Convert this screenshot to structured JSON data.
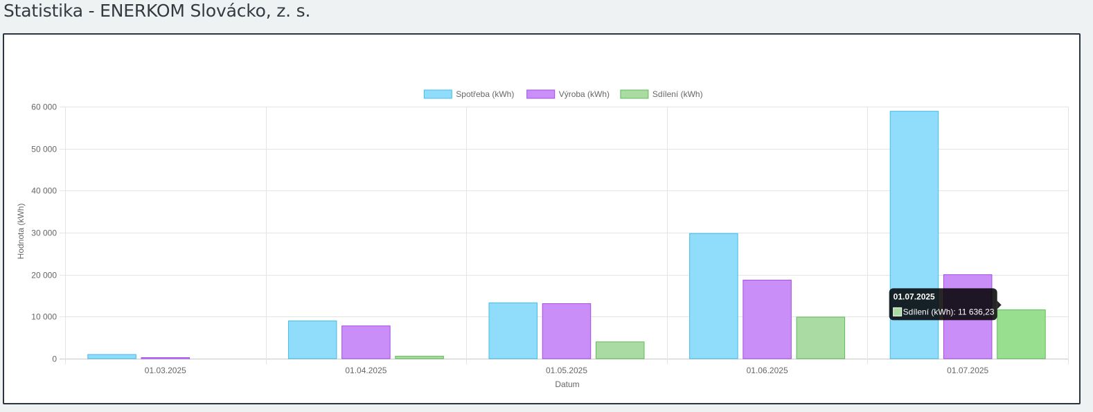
{
  "page": {
    "title": "Statistika - ENERKOM Slovácko, z. s."
  },
  "chart_data": {
    "type": "bar",
    "categories": [
      "01.03.2025",
      "01.04.2025",
      "01.05.2025",
      "01.06.2025",
      "01.07.2025"
    ],
    "series": [
      {
        "name": "Spotřeba (kWh)",
        "values": [
          1000,
          9000,
          13300,
          29800,
          58900
        ],
        "color": "#8fdcfb",
        "border": "#45bde9"
      },
      {
        "name": "Výroba (kWh)",
        "values": [
          250,
          7800,
          13100,
          18700,
          20000
        ],
        "color": "#ca8ef9",
        "border": "#a64be6"
      },
      {
        "name": "Sdílení (kWh)",
        "values": [
          0,
          600,
          4000,
          9900,
          11636.23
        ],
        "color": "#a9dba3",
        "border": "#5fbc58"
      }
    ],
    "xlabel": "Datum",
    "ylabel": "Hodnota (kWh)",
    "ylim": [
      0,
      60000
    ],
    "yticks": [
      "0",
      "10 000",
      "20 000",
      "30 000",
      "40 000",
      "50 000",
      "60 000"
    ],
    "grid": true,
    "legend_position": "top",
    "tooltip": {
      "title": "01.07.2025",
      "label": "Sdílení (kWh): 11 636,23",
      "series_index": 2,
      "category_index": 4
    }
  }
}
